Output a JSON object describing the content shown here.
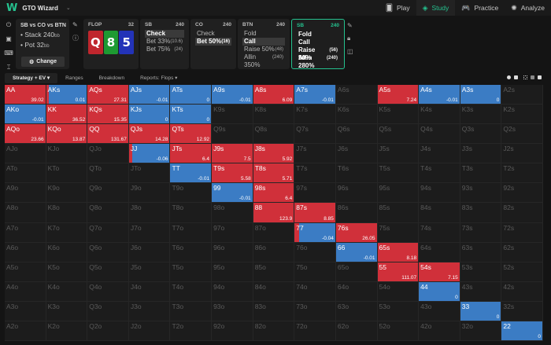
{
  "app": {
    "title": "GTO Wizard",
    "nav": [
      {
        "label": "Play",
        "icon": "cards-icon",
        "glyph": "🂠",
        "active": false
      },
      {
        "label": "Study",
        "icon": "study-icon",
        "glyph": "◈",
        "active": true
      },
      {
        "label": "Practice",
        "icon": "gamepad-icon",
        "glyph": "🎮",
        "active": false
      },
      {
        "label": "Analyze",
        "icon": "lightbulb-icon",
        "glyph": "✺",
        "active": false
      }
    ],
    "accent": "#25c28f"
  },
  "scenario": {
    "title": "SB vs CO vs BTN",
    "stack_label": "• Stack 240",
    "stack_unit": "bb",
    "pot_label": "• Pot 32",
    "pot_unit": "bb",
    "change_label": "Change",
    "change_icon": "⚙"
  },
  "flop": {
    "label": "FLOP",
    "pot": "32",
    "cards": [
      {
        "rank": "Q",
        "color": "#c0262d"
      },
      {
        "rank": "8",
        "color": "#1e9a32"
      },
      {
        "rank": "5",
        "color": "#2333b8"
      }
    ]
  },
  "actions": [
    {
      "pos": "SB",
      "stack": "240",
      "options": [
        {
          "label": "Check",
          "amt": "",
          "sel": true
        },
        {
          "label": "Bet 33%",
          "amt": "(10.6)",
          "sel": false
        },
        {
          "label": "Bet 75%",
          "amt": "(24)",
          "sel": false
        }
      ]
    },
    {
      "pos": "CO",
      "stack": "240",
      "options": [
        {
          "label": "Check",
          "amt": "",
          "sel": false
        },
        {
          "label": "Bet 50%",
          "amt": "(16)",
          "sel": true
        }
      ]
    },
    {
      "pos": "BTN",
      "stack": "240",
      "options": [
        {
          "label": "Fold",
          "amt": "",
          "sel": false
        },
        {
          "label": "Call",
          "amt": "",
          "sel": true
        },
        {
          "label": "Raise 50%",
          "amt": "(48)",
          "sel": false
        },
        {
          "label": "Allin 350%",
          "amt": "(240)",
          "sel": false
        }
      ]
    },
    {
      "pos": "SB",
      "stack": "240",
      "current": true,
      "options": [
        {
          "label": "Fold",
          "amt": ""
        },
        {
          "label": "Call",
          "amt": ""
        },
        {
          "label": "Raise 50%",
          "amt": "(56)"
        },
        {
          "label": "Allin 280%",
          "amt": "(240)"
        }
      ]
    }
  ],
  "tabs": [
    {
      "label": "Strategy + EV ▾",
      "active": true
    },
    {
      "label": "Ranges",
      "active": false
    },
    {
      "label": "Breakdown",
      "active": false
    },
    {
      "label": "Reports: Flops ▾",
      "active": false
    }
  ],
  "colors": {
    "raise": "#d0303a",
    "call": "#3b7cc4",
    "empty": "#1c1c1c"
  },
  "matrix": [
    [
      [
        "AA",
        "R",
        1,
        "39.02"
      ],
      [
        "AKs",
        "C",
        0.06,
        "0.01"
      ],
      [
        "AQs",
        "R",
        1,
        "27.31"
      ],
      [
        "AJs",
        "C",
        1,
        "-0.01"
      ],
      [
        "ATs",
        "C",
        1,
        "0"
      ],
      [
        "A9s",
        "C",
        1,
        "-0.01"
      ],
      [
        "A8s",
        "R",
        1,
        "6.09"
      ],
      [
        "A7s",
        "C",
        1,
        "-0.01"
      ],
      [
        "A6s",
        "",
        0,
        ""
      ],
      [
        "A5s",
        "R",
        1,
        "7.24"
      ],
      [
        "A4s",
        "C",
        1,
        "-0.01"
      ],
      [
        "A3s",
        "C",
        1,
        "0"
      ],
      [
        "A2s",
        "",
        0,
        ""
      ]
    ],
    [
      [
        "AKo",
        "C",
        1,
        "-0.01"
      ],
      [
        "KK",
        "R",
        1,
        "36.52"
      ],
      [
        "KQs",
        "R",
        1,
        "15.35"
      ],
      [
        "KJs",
        "C",
        1,
        "0"
      ],
      [
        "KTs",
        "C",
        1,
        "0"
      ],
      [
        "K9s",
        "",
        0,
        ""
      ],
      [
        "K8s",
        "",
        0,
        ""
      ],
      [
        "K7s",
        "",
        0,
        ""
      ],
      [
        "K6s",
        "",
        0,
        ""
      ],
      [
        "K5s",
        "",
        0,
        ""
      ],
      [
        "K4s",
        "",
        0,
        ""
      ],
      [
        "K3s",
        "",
        0,
        ""
      ],
      [
        "K2s",
        "",
        0,
        ""
      ]
    ],
    [
      [
        "AQo",
        "R",
        1,
        "23.66"
      ],
      [
        "KQo",
        "R",
        1,
        "13.87"
      ],
      [
        "QQ",
        "R",
        1,
        "131.67"
      ],
      [
        "QJs",
        "R",
        1,
        "14.28"
      ],
      [
        "QTs",
        "R",
        1,
        "12.92"
      ],
      [
        "Q9s",
        "",
        0,
        ""
      ],
      [
        "Q8s",
        "",
        0,
        ""
      ],
      [
        "Q7s",
        "",
        0,
        ""
      ],
      [
        "Q6s",
        "",
        0,
        ""
      ],
      [
        "Q5s",
        "",
        0,
        ""
      ],
      [
        "Q4s",
        "",
        0,
        ""
      ],
      [
        "Q3s",
        "",
        0,
        ""
      ],
      [
        "Q2s",
        "",
        0,
        ""
      ]
    ],
    [
      [
        "AJo",
        "",
        0,
        ""
      ],
      [
        "KJo",
        "",
        0,
        ""
      ],
      [
        "QJo",
        "",
        0,
        ""
      ],
      [
        "JJ",
        "C",
        0.08,
        "-0.06"
      ],
      [
        "JTs",
        "R",
        1,
        "6.4"
      ],
      [
        "J9s",
        "R",
        1,
        "7.5"
      ],
      [
        "J8s",
        "R",
        1,
        "5.92"
      ],
      [
        "J7s",
        "",
        0,
        ""
      ],
      [
        "J6s",
        "",
        0,
        ""
      ],
      [
        "J5s",
        "",
        0,
        ""
      ],
      [
        "J4s",
        "",
        0,
        ""
      ],
      [
        "J3s",
        "",
        0,
        ""
      ],
      [
        "J2s",
        "",
        0,
        ""
      ]
    ],
    [
      [
        "ATo",
        "",
        0,
        ""
      ],
      [
        "KTo",
        "",
        0,
        ""
      ],
      [
        "QTo",
        "",
        0,
        ""
      ],
      [
        "JTo",
        "",
        0,
        ""
      ],
      [
        "TT",
        "C",
        1,
        "-0.01"
      ],
      [
        "T9s",
        "R",
        1,
        "5.58"
      ],
      [
        "T8s",
        "R",
        1,
        "5.71"
      ],
      [
        "T7s",
        "",
        0,
        ""
      ],
      [
        "T6s",
        "",
        0,
        ""
      ],
      [
        "T5s",
        "",
        0,
        ""
      ],
      [
        "T4s",
        "",
        0,
        ""
      ],
      [
        "T3s",
        "",
        0,
        ""
      ],
      [
        "T2s",
        "",
        0,
        ""
      ]
    ],
    [
      [
        "A9o",
        "",
        0,
        ""
      ],
      [
        "K9o",
        "",
        0,
        ""
      ],
      [
        "Q9o",
        "",
        0,
        ""
      ],
      [
        "J9o",
        "",
        0,
        ""
      ],
      [
        "T9o",
        "",
        0,
        ""
      ],
      [
        "99",
        "C",
        1,
        "-0.01"
      ],
      [
        "98s",
        "R",
        1,
        "6.4"
      ],
      [
        "97s",
        "",
        0,
        ""
      ],
      [
        "96s",
        "",
        0,
        ""
      ],
      [
        "95s",
        "",
        0,
        ""
      ],
      [
        "94s",
        "",
        0,
        ""
      ],
      [
        "93s",
        "",
        0,
        ""
      ],
      [
        "92s",
        "",
        0,
        ""
      ]
    ],
    [
      [
        "A8o",
        "",
        0,
        ""
      ],
      [
        "K8o",
        "",
        0,
        ""
      ],
      [
        "Q8o",
        "",
        0,
        ""
      ],
      [
        "J8o",
        "",
        0,
        ""
      ],
      [
        "T8o",
        "",
        0,
        ""
      ],
      [
        "98o",
        "",
        0,
        ""
      ],
      [
        "88",
        "R",
        1,
        "123.9"
      ],
      [
        "87s",
        "R",
        1,
        "8.85"
      ],
      [
        "86s",
        "",
        0,
        ""
      ],
      [
        "85s",
        "",
        0,
        ""
      ],
      [
        "84s",
        "",
        0,
        ""
      ],
      [
        "83s",
        "",
        0,
        ""
      ],
      [
        "82s",
        "",
        0,
        ""
      ]
    ],
    [
      [
        "A7o",
        "",
        0,
        ""
      ],
      [
        "K7o",
        "",
        0,
        ""
      ],
      [
        "Q7o",
        "",
        0,
        ""
      ],
      [
        "J7o",
        "",
        0,
        ""
      ],
      [
        "T7o",
        "",
        0,
        ""
      ],
      [
        "97o",
        "",
        0,
        ""
      ],
      [
        "87o",
        "",
        0,
        ""
      ],
      [
        "77",
        "C",
        0.12,
        "-0.04"
      ],
      [
        "76s",
        "R",
        1,
        "26.05"
      ],
      [
        "75s",
        "",
        0,
        ""
      ],
      [
        "74s",
        "",
        0,
        ""
      ],
      [
        "73s",
        "",
        0,
        ""
      ],
      [
        "72s",
        "",
        0,
        ""
      ]
    ],
    [
      [
        "A6o",
        "",
        0,
        ""
      ],
      [
        "K6o",
        "",
        0,
        ""
      ],
      [
        "Q6o",
        "",
        0,
        ""
      ],
      [
        "J6o",
        "",
        0,
        ""
      ],
      [
        "T6o",
        "",
        0,
        ""
      ],
      [
        "96o",
        "",
        0,
        ""
      ],
      [
        "86o",
        "",
        0,
        ""
      ],
      [
        "76o",
        "",
        0,
        ""
      ],
      [
        "66",
        "C",
        1,
        "-0.01"
      ],
      [
        "65s",
        "R",
        1,
        "8.18"
      ],
      [
        "64s",
        "",
        0,
        ""
      ],
      [
        "63s",
        "",
        0,
        ""
      ],
      [
        "62s",
        "",
        0,
        ""
      ]
    ],
    [
      [
        "A5o",
        "",
        0,
        ""
      ],
      [
        "K5o",
        "",
        0,
        ""
      ],
      [
        "Q5o",
        "",
        0,
        ""
      ],
      [
        "J5o",
        "",
        0,
        ""
      ],
      [
        "T5o",
        "",
        0,
        ""
      ],
      [
        "95o",
        "",
        0,
        ""
      ],
      [
        "85o",
        "",
        0,
        ""
      ],
      [
        "75o",
        "",
        0,
        ""
      ],
      [
        "65o",
        "",
        0,
        ""
      ],
      [
        "55",
        "R",
        1,
        "111.07"
      ],
      [
        "54s",
        "R",
        1,
        "7.15"
      ],
      [
        "53s",
        "",
        0,
        ""
      ],
      [
        "52s",
        "",
        0,
        ""
      ]
    ],
    [
      [
        "A4o",
        "",
        0,
        ""
      ],
      [
        "K4o",
        "",
        0,
        ""
      ],
      [
        "Q4o",
        "",
        0,
        ""
      ],
      [
        "J4o",
        "",
        0,
        ""
      ],
      [
        "T4o",
        "",
        0,
        ""
      ],
      [
        "94o",
        "",
        0,
        ""
      ],
      [
        "84o",
        "",
        0,
        ""
      ],
      [
        "74o",
        "",
        0,
        ""
      ],
      [
        "64o",
        "",
        0,
        ""
      ],
      [
        "54o",
        "",
        0,
        ""
      ],
      [
        "44",
        "C",
        1,
        "0"
      ],
      [
        "43s",
        "",
        0,
        ""
      ],
      [
        "42s",
        "",
        0,
        ""
      ]
    ],
    [
      [
        "A3o",
        "",
        0,
        ""
      ],
      [
        "K3o",
        "",
        0,
        ""
      ],
      [
        "Q3o",
        "",
        0,
        ""
      ],
      [
        "J3o",
        "",
        0,
        ""
      ],
      [
        "T3o",
        "",
        0,
        ""
      ],
      [
        "93o",
        "",
        0,
        ""
      ],
      [
        "83o",
        "",
        0,
        ""
      ],
      [
        "73o",
        "",
        0,
        ""
      ],
      [
        "63o",
        "",
        0,
        ""
      ],
      [
        "53o",
        "",
        0,
        ""
      ],
      [
        "43o",
        "",
        0,
        ""
      ],
      [
        "33",
        "C",
        1,
        "0"
      ],
      [
        "32s",
        "",
        0,
        ""
      ]
    ],
    [
      [
        "A2o",
        "",
        0,
        ""
      ],
      [
        "K2o",
        "",
        0,
        ""
      ],
      [
        "Q2o",
        "",
        0,
        ""
      ],
      [
        "J2o",
        "",
        0,
        ""
      ],
      [
        "T2o",
        "",
        0,
        ""
      ],
      [
        "92o",
        "",
        0,
        ""
      ],
      [
        "82o",
        "",
        0,
        ""
      ],
      [
        "72o",
        "",
        0,
        ""
      ],
      [
        "62o",
        "",
        0,
        ""
      ],
      [
        "52o",
        "",
        0,
        ""
      ],
      [
        "42o",
        "",
        0,
        ""
      ],
      [
        "32o",
        "",
        0,
        ""
      ],
      [
        "22",
        "C",
        1,
        "0"
      ]
    ]
  ]
}
